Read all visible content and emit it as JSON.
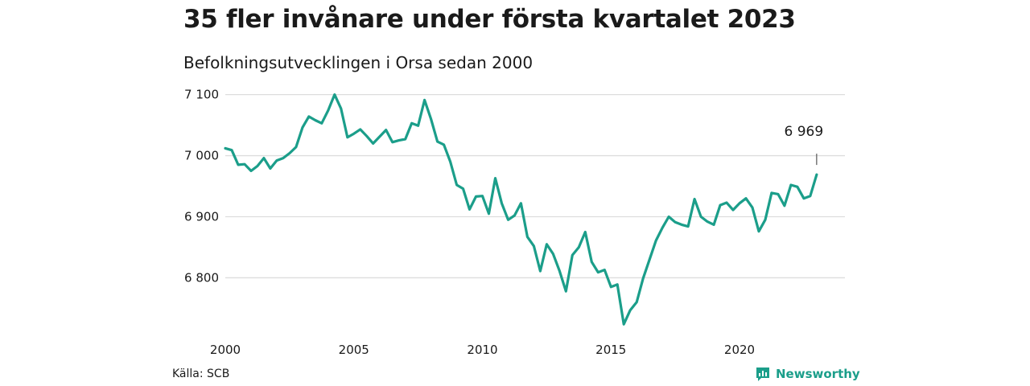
{
  "title": "35 fler invånare under första kvartalet 2023",
  "subtitle": "Befolkningsutvecklingen i Orsa sedan 2000",
  "source": "Källa: SCB",
  "brand": "Newsworthy",
  "colors": {
    "line": "#1b9e8a",
    "grid": "#dddddd",
    "brand": "#1b9e8a"
  },
  "chart_data": {
    "type": "line",
    "title": "35 fler invånare under första kvartalet 2023",
    "subtitle": "Befolkningsutvecklingen i Orsa sedan 2000",
    "xlabel": "",
    "ylabel": "",
    "xlim": [
      2000,
      2023.25
    ],
    "ylim": [
      6715,
      7110
    ],
    "yticks": [
      6800,
      6900,
      7000,
      7100
    ],
    "ytick_labels": [
      "6 800",
      "6 900",
      "7 000",
      "7 100"
    ],
    "xticks": [
      2000,
      2005,
      2010,
      2015,
      2020
    ],
    "xtick_labels": [
      "2000",
      "2005",
      "2010",
      "2015",
      "2020"
    ],
    "grid": true,
    "annotation": {
      "label": "6 969",
      "x": 2023.0,
      "y": 6969
    },
    "series": [
      {
        "x": [
          2000.0,
          2000.25,
          2000.5,
          2000.75,
          2001.0,
          2001.25,
          2001.5,
          2001.75,
          2002.0,
          2002.25,
          2002.5,
          2002.75,
          2003.0,
          2003.25,
          2003.5,
          2003.75,
          2004.0,
          2004.25,
          2004.5,
          2004.75,
          2005.0,
          2005.25,
          2005.5,
          2005.75,
          2006.0,
          2006.25,
          2006.5,
          2006.75,
          2007.0,
          2007.25,
          2007.5,
          2007.75,
          2008.0,
          2008.25,
          2008.5,
          2008.75,
          2009.0,
          2009.25,
          2009.5,
          2009.75,
          2010.0,
          2010.25,
          2010.5,
          2010.75,
          2011.0,
          2011.25,
          2011.5,
          2011.75,
          2012.0,
          2012.25,
          2012.5,
          2012.75,
          2013.0,
          2013.25,
          2013.5,
          2013.75,
          2014.0,
          2014.25,
          2014.5,
          2014.75,
          2015.0,
          2015.25,
          2015.5,
          2015.75,
          2016.0,
          2016.25,
          2016.5,
          2016.75,
          2017.0,
          2017.25,
          2017.5,
          2017.75,
          2018.0,
          2018.25,
          2018.5,
          2018.75,
          2019.0,
          2019.25,
          2019.5,
          2019.75,
          2020.0,
          2020.25,
          2020.5,
          2020.75,
          2021.0,
          2021.25,
          2021.5,
          2021.75,
          2022.0,
          2022.25,
          2022.5,
          2022.75,
          2023.0
        ],
        "values": [
          7012,
          7009,
          6985,
          6986,
          6975,
          6983,
          6996,
          6979,
          6992,
          6996,
          7004,
          7014,
          7046,
          7064,
          7058,
          7053,
          7074,
          7100,
          7077,
          7030,
          7036,
          7043,
          7032,
          7020,
          7031,
          7042,
          7022,
          7025,
          7027,
          7053,
          7049,
          7091,
          7060,
          7023,
          7018,
          6990,
          6952,
          6946,
          6912,
          6933,
          6934,
          6905,
          6963,
          6922,
          6895,
          6902,
          6922,
          6867,
          6852,
          6811,
          6855,
          6839,
          6811,
          6778,
          6837,
          6850,
          6875,
          6826,
          6809,
          6813,
          6785,
          6789,
          6724,
          6747,
          6760,
          6799,
          6830,
          6861,
          6882,
          6900,
          6891,
          6887,
          6884,
          6929,
          6900,
          6892,
          6887,
          6919,
          6923,
          6911,
          6922,
          6930,
          6915,
          6876,
          6895,
          6939,
          6937,
          6918,
          6952,
          6949,
          6930,
          6934,
          6969
        ]
      }
    ]
  }
}
